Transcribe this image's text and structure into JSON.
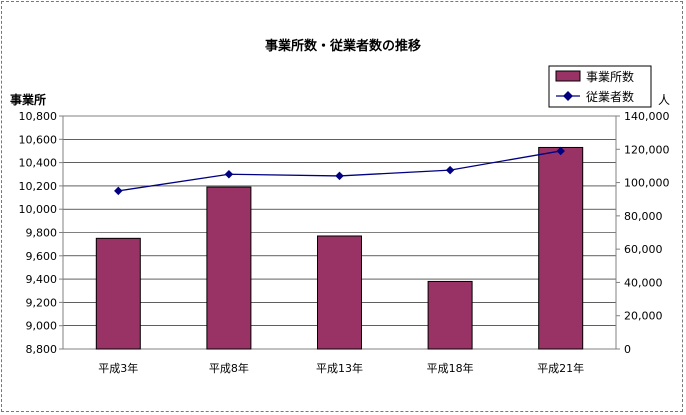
{
  "chart_data": {
    "type": "bar",
    "title": "事業所数・従業者数の推移",
    "categories": [
      "平成3年",
      "平成8年",
      "平成13年",
      "平成18年",
      "平成21年"
    ],
    "y_left": {
      "label": "事業所",
      "range": [
        8800,
        10800
      ],
      "ticks": [
        "8,800",
        "9,000",
        "9,200",
        "9,400",
        "9,600",
        "9,800",
        "10,000",
        "10,200",
        "10,400",
        "10,600",
        "10,800"
      ]
    },
    "y_right": {
      "label": "人",
      "range": [
        0,
        140000
      ],
      "ticks": [
        "0",
        "20,000",
        "40,000",
        "60,000",
        "80,000",
        "100,000",
        "120,000",
        "140,000"
      ]
    },
    "series": [
      {
        "name": "事業所数",
        "kind": "bar",
        "axis": "left",
        "color": "#993366",
        "values": [
          9750,
          10190,
          9770,
          9380,
          10530
        ]
      },
      {
        "name": "従業者数",
        "kind": "line",
        "axis": "right",
        "color": "#000080",
        "values": [
          95000,
          105000,
          104000,
          107500,
          119000
        ]
      }
    ],
    "legend": "top-right",
    "grid": true
  }
}
